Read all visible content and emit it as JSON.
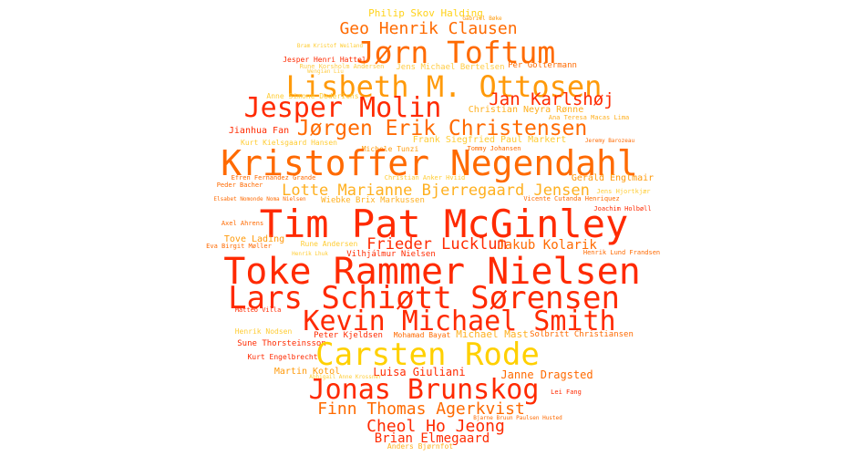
{
  "cloud": {
    "words": [
      {
        "text": "Philip Skov Halding",
        "color": "#ffd21a"
      },
      {
        "text": "Gabriel Bøke",
        "color": "#ff9a0a"
      },
      {
        "text": "Geo Henrik Clausen",
        "color": "#ff6a00"
      },
      {
        "text": "Jørn Toftum",
        "color": "#ff6a00"
      },
      {
        "text": "Bram Kristof Weiland",
        "color": "#ffcc33"
      },
      {
        "text": "Jesper Henri Hattel",
        "color": "#ff2a00"
      },
      {
        "text": "Rune Korsholm Andersen",
        "color": "#ffcc44"
      },
      {
        "text": "Wengian Liu",
        "color": "#ffcc44"
      },
      {
        "text": "Jens Michael Bertelsen",
        "color": "#ffcc44"
      },
      {
        "text": "Per Goltermann",
        "color": "#ff6a00"
      },
      {
        "text": "Lisbeth M. Ottosen",
        "color": "#ff9a0a"
      },
      {
        "text": "Anne Simone Dederichs",
        "color": "#ffcc33"
      },
      {
        "text": "Jan Karlshøj",
        "color": "#ff2a00"
      },
      {
        "text": "Jesper Molin",
        "color": "#ff2a00"
      },
      {
        "text": "Christian Neyra Rønne",
        "color": "#ffb020"
      },
      {
        "text": "Ana Teresa Macas Lima",
        "color": "#ffb020"
      },
      {
        "text": "Jørgen Erik Christensen",
        "color": "#ff6a00"
      },
      {
        "text": "Jianhua Fan",
        "color": "#ff2a00"
      },
      {
        "text": "Kurt Kielsgaard Hansen",
        "color": "#ffcc33"
      },
      {
        "text": "Frank Siegfried Paul Markert",
        "color": "#ffcc33"
      },
      {
        "text": "Jeremy Barozeau",
        "color": "#ff6a00"
      },
      {
        "text": "Michele Tunzi",
        "color": "#ff9a0a"
      },
      {
        "text": "Tommy Johansen",
        "color": "#ff6a00"
      },
      {
        "text": "Kristoffer Negendahl",
        "color": "#ff6a00"
      },
      {
        "text": "Efren Fernandez Grande",
        "color": "#ff6a00"
      },
      {
        "text": "Christian Anker Hviid",
        "color": "#ffcc33"
      },
      {
        "text": "Gerald Englmair",
        "color": "#ff9a0a"
      },
      {
        "text": "Peder Bacher",
        "color": "#ff6a00"
      },
      {
        "text": "Lotte Marianne Bjerregaard Jensen",
        "color": "#ffb020"
      },
      {
        "text": "Jens Hjortkjær",
        "color": "#ffcc33"
      },
      {
        "text": "Elsabet Nomonde Noma Nielsen",
        "color": "#ff6a00"
      },
      {
        "text": "Wiebke Brix Markussen",
        "color": "#ffb020"
      },
      {
        "text": "Vicente Cutanda Henriquez",
        "color": "#ff6a00"
      },
      {
        "text": "Joachim Holbøll",
        "color": "#ff2a00"
      },
      {
        "text": "Axel Ahrens",
        "color": "#ff6a00"
      },
      {
        "text": "Tim Pat McGinley",
        "color": "#ff2a00"
      },
      {
        "text": "Tove Lading",
        "color": "#ff9a0a"
      },
      {
        "text": "Rune Andersen",
        "color": "#ffcc33"
      },
      {
        "text": "Eva Birgit Møller",
        "color": "#ff6a00"
      },
      {
        "text": "Henrik Lund Frandsen",
        "color": "#ff6a00"
      },
      {
        "text": "Frieder Lucklum",
        "color": "#ff2a00"
      },
      {
        "text": "Jakub Kolarik",
        "color": "#ff6a00"
      },
      {
        "text": "Vilhjálmur Nielsen",
        "color": "#ff2a00"
      },
      {
        "text": "Henrik Lhuk",
        "color": "#ffcc33"
      },
      {
        "text": "Toke Rammer Nielsen",
        "color": "#ff2a00"
      },
      {
        "text": "Lars Schiøtt Sørensen",
        "color": "#ff2a00"
      },
      {
        "text": "Matteo Villa",
        "color": "#ff2a00"
      },
      {
        "text": "Kevin Michael Smith",
        "color": "#ff2a00"
      },
      {
        "text": "Henrik Nodsen",
        "color": "#ffcc33"
      },
      {
        "text": "Peter Kjeldsen",
        "color": "#ff2a00"
      },
      {
        "text": "Mohamad Bayat",
        "color": "#ff6a00"
      },
      {
        "text": "Michael Mast",
        "color": "#ffb020"
      },
      {
        "text": "Solbritt Christiansen",
        "color": "#ff6a00"
      },
      {
        "text": "Sune Thorsteinsson",
        "color": "#ff2a00"
      },
      {
        "text": "Carsten Rode",
        "color": "#ffd000"
      },
      {
        "text": "Kurt Engelbrecht",
        "color": "#ff2a00"
      },
      {
        "text": "Martin Kotol",
        "color": "#ff9a0a"
      },
      {
        "text": "Luisa Giuliani",
        "color": "#ff2a00"
      },
      {
        "text": "Abhigail Anne Krossner",
        "color": "#ffcc33"
      },
      {
        "text": "Janne Dragsted",
        "color": "#ff6a00"
      },
      {
        "text": "Jonas Brunskog",
        "color": "#ff2a00"
      },
      {
        "text": "Lei Fang",
        "color": "#ff2a00"
      },
      {
        "text": "Finn Thomas Agerkvist",
        "color": "#ff6a00"
      },
      {
        "text": "Bjarne Bruun Paulsen Husted",
        "color": "#ff6a00"
      },
      {
        "text": "Cheol Ho Jeong",
        "color": "#ff2a00"
      },
      {
        "text": "Brian Elmegaard",
        "color": "#ff2a00"
      },
      {
        "text": "Anders Bjørnfot",
        "color": "#ffb020"
      }
    ]
  }
}
